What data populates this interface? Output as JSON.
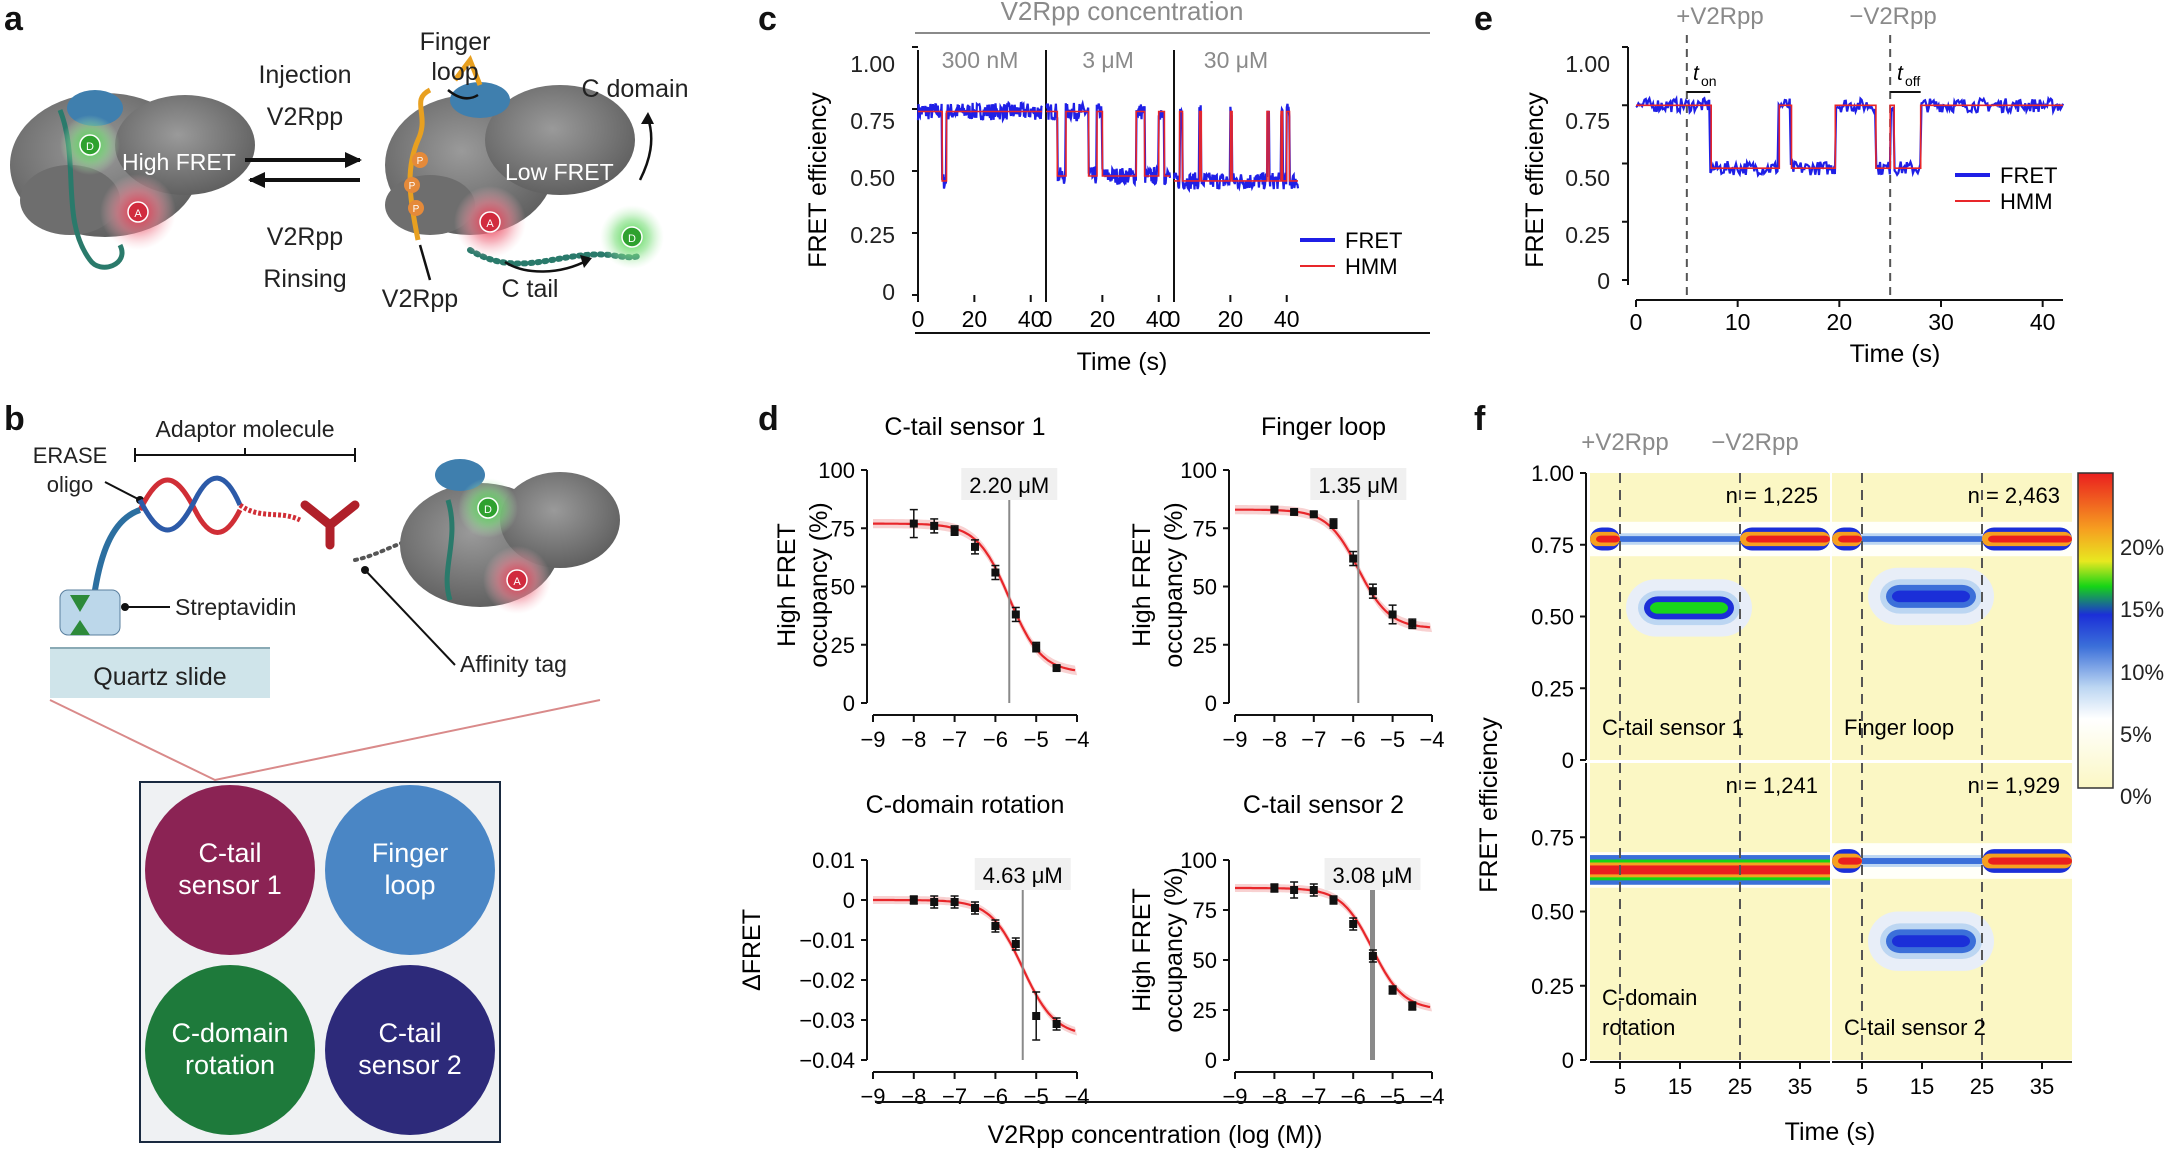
{
  "panel_labels": {
    "a": "a",
    "b": "b",
    "c": "c",
    "d": "d",
    "e": "e",
    "f": "f"
  },
  "colors": {
    "fret": "#1f1fe6",
    "hmm": "#e8262a",
    "fit": "#e8262a",
    "heat_bg": "#fbf7c4",
    "circle1": "#8b2354",
    "circle2": "#4a86c5",
    "circle3": "#1e7a3b",
    "circle4": "#2d2a7a",
    "grey_header": "#8a8a8a"
  },
  "panel_a": {
    "injection": "Injection",
    "v2rpp_top": "V2Rpp",
    "v2rpp_bottom": "V2Rpp",
    "rinsing": "Rinsing",
    "high_fret": "High FRET",
    "low_fret": "Low FRET",
    "finger": "Finger",
    "loop": "loop",
    "c_domain": "C domain",
    "v2rpp_label": "V2Rpp",
    "c_tail": "C tail",
    "donor": "D",
    "acceptor": "A",
    "phospho": "P"
  },
  "panel_b": {
    "adaptor": "Adaptor molecule",
    "erase": "ERASE",
    "oligo": "oligo",
    "streptavidin": "Streptavidin",
    "quartz": "Quartz slide",
    "affinity": "Affinity tag",
    "circles": [
      {
        "line1": "C-tail",
        "line2": "sensor 1"
      },
      {
        "line1": "Finger",
        "line2": "loop"
      },
      {
        "line1": "C-domain",
        "line2": "rotation"
      },
      {
        "line1": "C-tail",
        "line2": "sensor 2"
      }
    ]
  },
  "chart_data": [
    {
      "id": "c",
      "type": "line",
      "title": "V2Rpp concentration",
      "ylabel": "FRET efficiency",
      "xlabel": "Time (s)",
      "ylim": [
        0,
        1.0
      ],
      "yticks": [
        "1.00",
        "0.75",
        "0.50",
        "0.25",
        "0"
      ],
      "xticks": [
        "0",
        "20",
        "40"
      ],
      "subpanels": [
        "300 nM",
        "3 μM",
        "30 μM"
      ],
      "legend": [
        {
          "name": "FRET"
        },
        {
          "name": "HMM"
        }
      ],
      "series": [
        {
          "name": "300 nM",
          "states": [
            0.74,
            0.46
          ],
          "x": [
            0,
            9,
            10,
            44
          ],
          "y": [
            0.74,
            0.46,
            0.74,
            0.74
          ]
        },
        {
          "name": "3 μM",
          "states": [
            0.74,
            0.48
          ]
        },
        {
          "name": "30 μM",
          "states": [
            0.74,
            0.46
          ]
        }
      ]
    },
    {
      "id": "d",
      "type": "scatter",
      "xlabel": "V2Rpp concentration (log (M))",
      "xticks": [
        "−9",
        "−8",
        "−7",
        "−6",
        "−5",
        "−4"
      ],
      "plots": [
        {
          "title": "C-tail sensor 1",
          "ec50": "2.20 μM",
          "log_ec50": -5.66,
          "ylabel1": "High FRET",
          "ylabel2": "occupancy (%)",
          "yticks": [
            "100",
            "75",
            "50",
            "25",
            "0"
          ],
          "ylim": [
            0,
            100
          ],
          "x": [
            -8,
            -7.5,
            -7,
            -6.5,
            -6,
            -5.5,
            -5,
            -4.5
          ],
          "y": [
            77,
            76,
            74,
            67,
            56,
            38,
            24,
            15
          ],
          "err": [
            6,
            3,
            2,
            3,
            3,
            3,
            2,
            1
          ]
        },
        {
          "title": "Finger loop",
          "ec50": "1.35 μM",
          "log_ec50": -5.87,
          "ylabel1": "High FRET",
          "ylabel2": "occupancy (%)",
          "yticks": [
            "100",
            "75",
            "50",
            "25",
            "0"
          ],
          "ylim": [
            0,
            100
          ],
          "x": [
            -8,
            -7.5,
            -7,
            -6.5,
            -6,
            -5.5,
            -5,
            -4.5
          ],
          "y": [
            83,
            82,
            81,
            77,
            62,
            48,
            38,
            34
          ],
          "err": [
            1,
            1,
            1,
            2,
            3,
            3,
            4,
            2
          ]
        },
        {
          "title": "C-domain rotation",
          "ec50": "4.63 μM",
          "log_ec50": -5.33,
          "ylabel1": "ΔFRET",
          "ylabel2": "",
          "yticks": [
            "0.01",
            "0",
            "−0.01",
            "−0.02",
            "−0.03",
            "−0.04"
          ],
          "ylim": [
            -0.04,
            0.01
          ],
          "x": [
            -8,
            -7.5,
            -7,
            -6.5,
            -6,
            -5.5,
            -5,
            -4.5
          ],
          "y": [
            0,
            -0.0005,
            -0.0005,
            -0.002,
            -0.0065,
            -0.011,
            -0.029,
            -0.031
          ],
          "err": [
            0.001,
            0.0015,
            0.0015,
            0.0015,
            0.0015,
            0.0015,
            0.006,
            0.0015
          ]
        },
        {
          "title": "C-tail sensor 2",
          "ec50": "3.08 μM",
          "log_ec50": -5.51,
          "ylabel1": "High FRET",
          "ylabel2": "occupancy (%)",
          "yticks": [
            "100",
            "75",
            "50",
            "25",
            "0"
          ],
          "ylim": [
            0,
            100
          ],
          "x": [
            -8,
            -7.5,
            -7,
            -6.5,
            -6,
            -5.5,
            -5,
            -4.5
          ],
          "y": [
            86,
            85,
            85,
            80,
            68,
            52,
            35,
            27
          ],
          "err": [
            2,
            4,
            3,
            2,
            3,
            3,
            2,
            2
          ]
        }
      ]
    },
    {
      "id": "e",
      "type": "line",
      "ylabel": "FRET efficiency",
      "xlabel": "Time (s)",
      "ylim": [
        0,
        1.0
      ],
      "yticks": [
        "1.00",
        "0.75",
        "0.50",
        "0.25",
        "0"
      ],
      "xticks": [
        "0",
        "10",
        "20",
        "30",
        "40"
      ],
      "annotations": {
        "plus": "+V2Rpp",
        "minus": "−V2Rpp",
        "t": "t",
        "on": "on",
        "off": "off"
      },
      "markers": [
        5,
        25
      ],
      "legend": [
        {
          "name": "FRET"
        },
        {
          "name": "HMM"
        }
      ],
      "states": [
        0.75,
        0.48
      ]
    },
    {
      "id": "f",
      "type": "heatmap",
      "ylabel": "FRET efficiency",
      "xlabel": "Time (s)",
      "yticks": [
        "1.00",
        "0.75",
        "0.50",
        "0.25",
        "0"
      ],
      "xticks": [
        "5",
        "15",
        "25",
        "35"
      ],
      "header": {
        "plus": "+V2Rpp",
        "minus": "−V2Rpp"
      },
      "colorbar_ticks": [
        "20%",
        "15%",
        "10%",
        "5%",
        "0%"
      ],
      "plots": [
        {
          "name": "C-tail sensor 1",
          "name2": "",
          "n": "n = 1,225"
        },
        {
          "name": "Finger loop",
          "name2": "",
          "n": "n = 2,463"
        },
        {
          "name": "C-domain",
          "name2": "rotation",
          "n": "n = 1,241"
        },
        {
          "name": "C-tail sensor 2",
          "name2": "",
          "n": "n = 1,929"
        }
      ]
    }
  ]
}
